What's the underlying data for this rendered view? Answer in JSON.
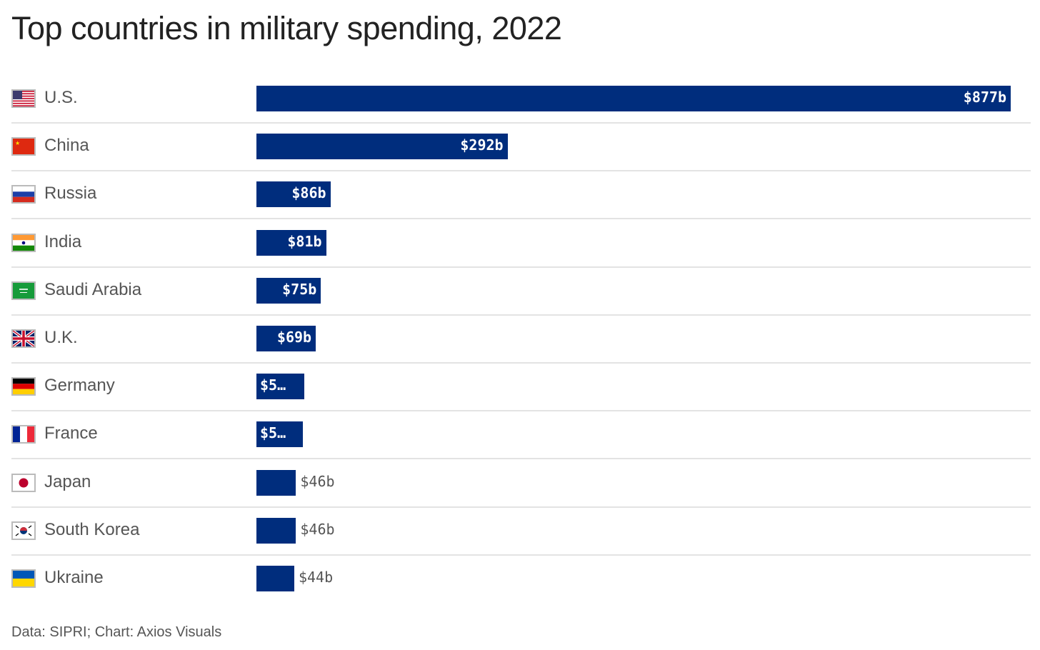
{
  "title": "Top countries in military spending, 2022",
  "source": "Data: SIPRI; Chart: Axios Visuals",
  "colors": {
    "bar": "#002d7d",
    "label_inside": "#ffffff",
    "label_outside": "#555555"
  },
  "chart_data": {
    "type": "bar",
    "orientation": "horizontal",
    "title": "Top countries in military spending, 2022",
    "xlabel": "",
    "ylabel": "",
    "unit": "billions USD",
    "xlim": [
      0,
      877
    ],
    "grid": false,
    "categories": [
      "U.S.",
      "China",
      "Russia",
      "India",
      "Saudi Arabia",
      "U.K.",
      "Germany",
      "France",
      "Japan",
      "South Korea",
      "Ukraine"
    ],
    "flags": [
      "us-flag-icon",
      "china-flag-icon",
      "russia-flag-icon",
      "india-flag-icon",
      "saudi-arabia-flag-icon",
      "uk-flag-icon",
      "germany-flag-icon",
      "france-flag-icon",
      "japan-flag-icon",
      "south-korea-flag-icon",
      "ukraine-flag-icon"
    ],
    "values": [
      877,
      292,
      86,
      81,
      75,
      69,
      56,
      54,
      46,
      46,
      44
    ],
    "labels": [
      "$877b",
      "$292b",
      "$86b",
      "$81b",
      "$75b",
      "$69b",
      "$5…",
      "$5…",
      "$46b",
      "$46b",
      "$44b"
    ]
  }
}
